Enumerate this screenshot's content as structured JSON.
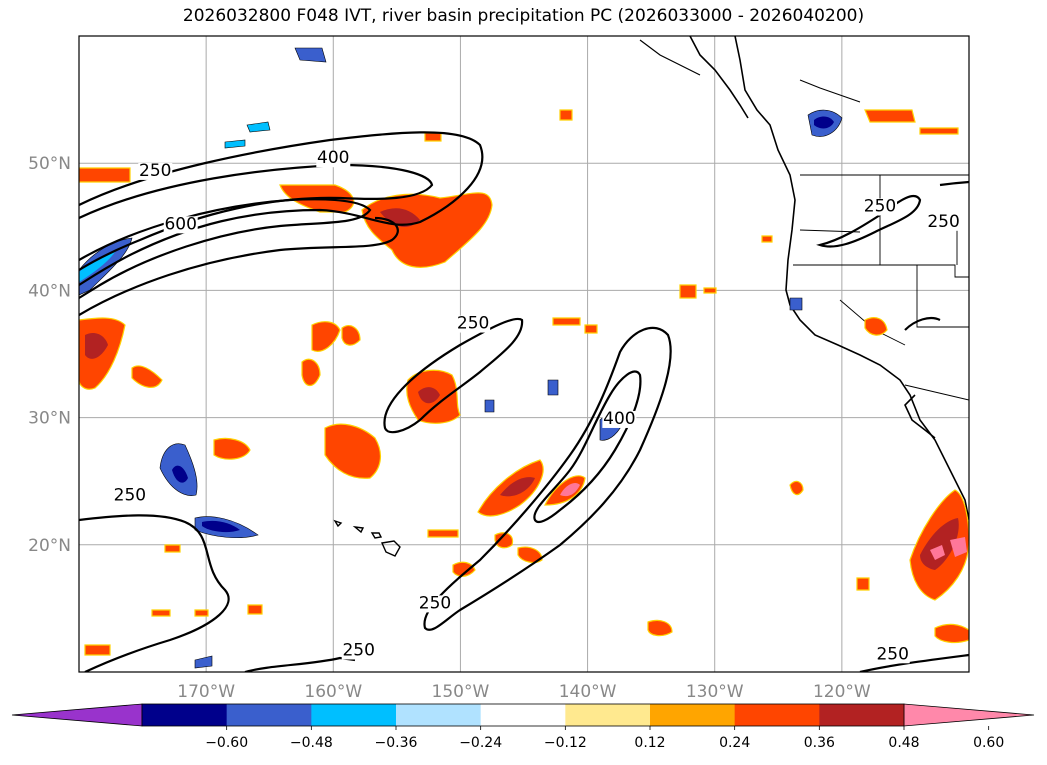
{
  "title": "2026032800 F048 IVT, river basin precipitation PC (2026033000 - 2026040200)",
  "map": {
    "lat_range": [
      10,
      60
    ],
    "lon_range": [
      -180,
      -110
    ],
    "lat_ticks": [
      {
        "value": 20,
        "label": "20°N"
      },
      {
        "value": 30,
        "label": "30°N"
      },
      {
        "value": 40,
        "label": "40°N"
      },
      {
        "value": 50,
        "label": "50°N"
      }
    ],
    "lon_ticks": [
      {
        "value": -170,
        "label": "170°W"
      },
      {
        "value": -160,
        "label": "160°W"
      },
      {
        "value": -150,
        "label": "150°W"
      },
      {
        "value": -140,
        "label": "140°W"
      },
      {
        "value": -130,
        "label": "130°W"
      },
      {
        "value": -120,
        "label": "120°W"
      }
    ],
    "grid": true,
    "ivt_contour_levels": [
      250,
      400,
      600
    ],
    "contour_labels": [
      {
        "text": "250",
        "lon": -174,
        "lat": 49
      },
      {
        "text": "400",
        "lon": -160,
        "lat": 50
      },
      {
        "text": "600",
        "lon": -172,
        "lat": 44.8
      },
      {
        "text": "250",
        "lon": -149,
        "lat": 37
      },
      {
        "text": "250",
        "lon": -152,
        "lat": 15
      },
      {
        "text": "400",
        "lon": -137.5,
        "lat": 29.5
      },
      {
        "text": "250",
        "lon": -176,
        "lat": 23.5
      },
      {
        "text": "250",
        "lon": -158,
        "lat": 11.3
      },
      {
        "text": "250",
        "lon": -116,
        "lat": 11
      },
      {
        "text": "250",
        "lon": -117,
        "lat": 46.2
      },
      {
        "text": "250",
        "lon": -112,
        "lat": 45
      }
    ]
  },
  "colorbar": {
    "ticks": [
      "−0.60",
      "−0.48",
      "−0.36",
      "−0.24",
      "−0.12",
      "0.12",
      "0.24",
      "0.36",
      "0.48",
      "0.60"
    ],
    "colors": [
      "#9933cc",
      "#00008b",
      "#3a5fcd",
      "#00bfff",
      "#b0e2ff",
      "#ffffff",
      "#ffe98f",
      "#ffa500",
      "#ff4500",
      "#b22222",
      "#ff88aa"
    ]
  }
}
